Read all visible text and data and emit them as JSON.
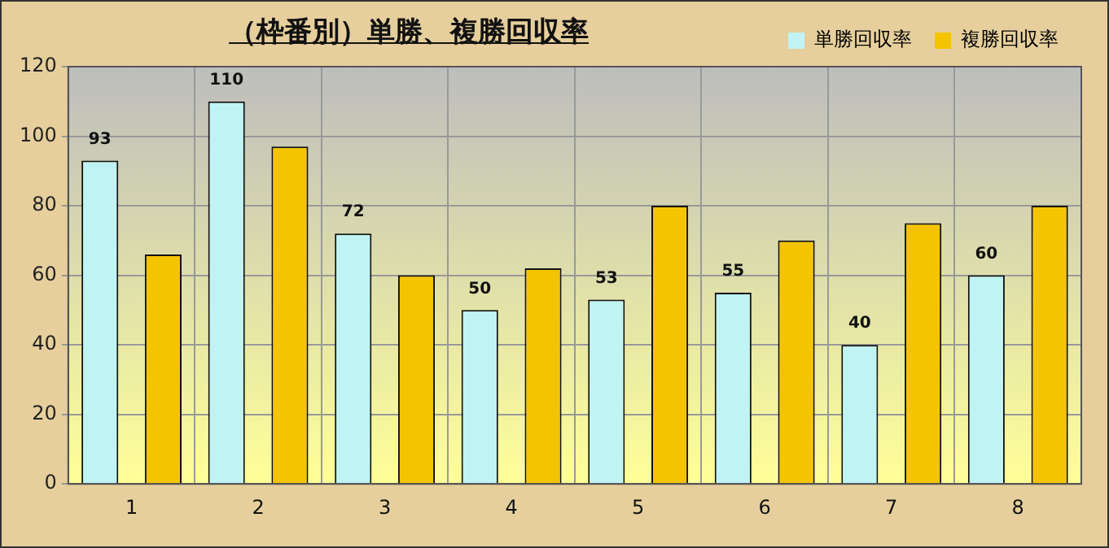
{
  "chart_data": {
    "type": "bar",
    "title": "（枠番別）単勝、複勝回収率",
    "categories": [
      "1",
      "2",
      "3",
      "4",
      "5",
      "6",
      "7",
      "8"
    ],
    "series": [
      {
        "name": "単勝回収率",
        "color": "#c0f4f4",
        "values": [
          93,
          110,
          72,
          50,
          53,
          55,
          40,
          60
        ],
        "value_labels": [
          "93",
          "110",
          "72",
          "50",
          "53",
          "55",
          "40",
          "60"
        ]
      },
      {
        "name": "複勝回収率",
        "color": "#f5c400",
        "values": [
          66,
          97,
          60,
          62,
          80,
          70,
          75,
          80
        ]
      }
    ],
    "ylim": [
      0,
      120
    ],
    "yticks": [
      0,
      20,
      40,
      60,
      80,
      100,
      120
    ],
    "grid": true,
    "legend": "top right"
  }
}
